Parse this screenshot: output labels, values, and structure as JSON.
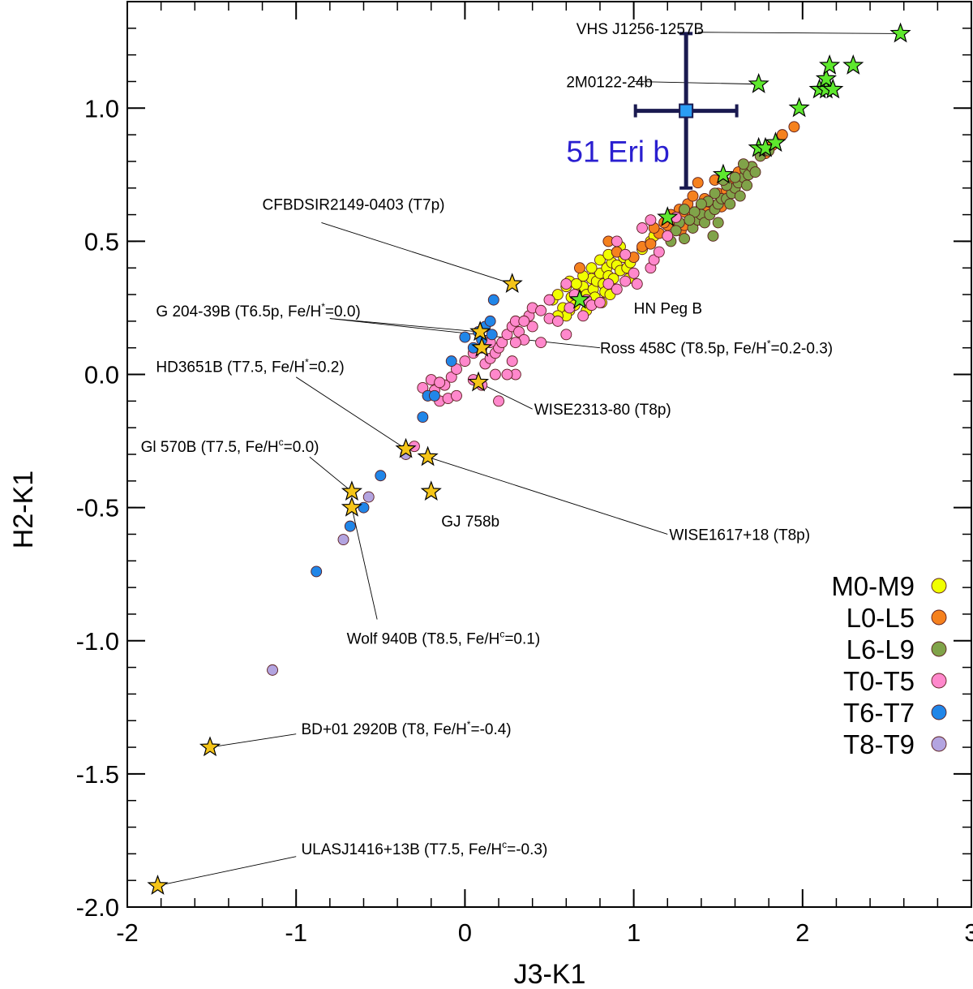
{
  "chart_data": {
    "type": "scatter",
    "title": "",
    "xlabel": "J3-K1",
    "ylabel": "H2-K1",
    "xlim": [
      -2,
      3
    ],
    "ylim": [
      -2.0,
      1.4
    ],
    "xticks": [
      -2,
      -1,
      0,
      1,
      2,
      3
    ],
    "xtick_labels": [
      "-2",
      "-1",
      "0",
      "1",
      "2",
      "3"
    ],
    "yticks": [
      -2.0,
      -1.5,
      -1.0,
      -0.5,
      0.0,
      0.5,
      1.0
    ],
    "ytick_labels": [
      "-2.0",
      "-1.5",
      "-1.0",
      "-0.5",
      "0.0",
      "0.5",
      "1.0"
    ],
    "grid": false,
    "legend_position": "bottom-right",
    "series": [
      {
        "name": "M0-M9",
        "color": "#f0ff00",
        "marker": "circle",
        "points": [
          [
            0.52,
            0.28
          ],
          [
            0.55,
            0.3
          ],
          [
            0.58,
            0.25
          ],
          [
            0.6,
            0.33
          ],
          [
            0.62,
            0.24
          ],
          [
            0.63,
            0.29
          ],
          [
            0.65,
            0.26
          ],
          [
            0.6,
            0.22
          ],
          [
            0.68,
            0.31
          ],
          [
            0.7,
            0.33
          ],
          [
            0.72,
            0.3
          ],
          [
            0.73,
            0.27
          ],
          [
            0.75,
            0.36
          ],
          [
            0.76,
            0.32
          ],
          [
            0.78,
            0.35
          ],
          [
            0.8,
            0.38
          ],
          [
            0.82,
            0.34
          ],
          [
            0.84,
            0.4
          ],
          [
            0.85,
            0.37
          ],
          [
            0.87,
            0.42
          ],
          [
            0.88,
            0.36
          ],
          [
            0.9,
            0.41
          ],
          [
            0.92,
            0.39
          ],
          [
            0.94,
            0.44
          ],
          [
            0.96,
            0.4
          ],
          [
            0.98,
            0.42
          ],
          [
            0.7,
            0.37
          ],
          [
            0.75,
            0.4
          ],
          [
            0.8,
            0.43
          ],
          [
            0.85,
            0.45
          ],
          [
            0.9,
            0.46
          ],
          [
            0.95,
            0.45
          ],
          [
            0.62,
            0.35
          ],
          [
            0.66,
            0.34
          ],
          [
            0.55,
            0.22
          ],
          [
            0.77,
            0.29
          ],
          [
            0.83,
            0.31
          ],
          [
            0.88,
            0.32
          ],
          [
            1.05,
            0.47
          ],
          [
            1.1,
            0.5
          ],
          [
            1.12,
            0.52
          ],
          [
            0.92,
            0.48
          ],
          [
            0.97,
            0.36
          ],
          [
            0.72,
            0.24
          ],
          [
            0.81,
            0.27
          ],
          [
            0.86,
            0.3
          ]
        ]
      },
      {
        "name": "L0-L5",
        "color": "#f5811e",
        "marker": "circle",
        "points": [
          [
            0.68,
            0.4
          ],
          [
            0.85,
            0.5
          ],
          [
            0.9,
            0.46
          ],
          [
            1.0,
            0.44
          ],
          [
            1.05,
            0.48
          ],
          [
            1.15,
            0.53
          ],
          [
            1.2,
            0.56
          ],
          [
            1.25,
            0.58
          ],
          [
            1.27,
            0.62
          ],
          [
            1.3,
            0.61
          ],
          [
            1.32,
            0.64
          ],
          [
            1.35,
            0.6
          ],
          [
            1.4,
            0.63
          ],
          [
            1.42,
            0.66
          ],
          [
            1.45,
            0.64
          ],
          [
            1.5,
            0.68
          ],
          [
            1.55,
            0.69
          ],
          [
            1.58,
            0.72
          ],
          [
            1.6,
            0.7
          ],
          [
            1.35,
            0.67
          ],
          [
            1.28,
            0.54
          ],
          [
            1.22,
            0.6
          ],
          [
            1.18,
            0.57
          ],
          [
            1.38,
            0.72
          ],
          [
            1.48,
            0.73
          ],
          [
            1.62,
            0.76
          ],
          [
            1.7,
            0.78
          ],
          [
            1.78,
            0.83
          ],
          [
            1.82,
            0.86
          ],
          [
            1.88,
            0.9
          ],
          [
            1.95,
            0.93
          ],
          [
            1.1,
            0.49
          ],
          [
            1.12,
            0.55
          ],
          [
            1.3,
            0.56
          ],
          [
            1.43,
            0.61
          ],
          [
            1.52,
            0.63
          ]
        ]
      },
      {
        "name": "L6-L9",
        "color": "#80a349",
        "marker": "circle",
        "points": [
          [
            1.3,
            0.51
          ],
          [
            1.35,
            0.55
          ],
          [
            1.38,
            0.58
          ],
          [
            1.4,
            0.6
          ],
          [
            1.42,
            0.57
          ],
          [
            1.45,
            0.6
          ],
          [
            1.48,
            0.62
          ],
          [
            1.5,
            0.64
          ],
          [
            1.52,
            0.66
          ],
          [
            1.55,
            0.66
          ],
          [
            1.58,
            0.68
          ],
          [
            1.6,
            0.7
          ],
          [
            1.62,
            0.72
          ],
          [
            1.65,
            0.74
          ],
          [
            1.66,
            0.77
          ],
          [
            1.68,
            0.75
          ],
          [
            1.7,
            0.78
          ],
          [
            1.72,
            0.76
          ],
          [
            1.55,
            0.71
          ],
          [
            1.6,
            0.74
          ],
          [
            1.65,
            0.79
          ],
          [
            1.53,
            0.73
          ],
          [
            1.48,
            0.68
          ],
          [
            1.44,
            0.65
          ],
          [
            1.4,
            0.64
          ],
          [
            1.36,
            0.61
          ],
          [
            1.33,
            0.58
          ],
          [
            1.3,
            0.62
          ],
          [
            1.27,
            0.57
          ],
          [
            1.25,
            0.54
          ],
          [
            1.75,
            0.82
          ],
          [
            1.8,
            0.84
          ],
          [
            1.5,
            0.57
          ],
          [
            1.57,
            0.64
          ],
          [
            1.63,
            0.67
          ],
          [
            1.67,
            0.71
          ],
          [
            1.22,
            0.5
          ],
          [
            1.47,
            0.52
          ]
        ]
      },
      {
        "name": "T0-T5",
        "color": "#ff88cc",
        "marker": "circle",
        "points": [
          [
            -0.25,
            -0.05
          ],
          [
            -0.22,
            -0.08
          ],
          [
            -0.2,
            -0.02
          ],
          [
            -0.18,
            -0.06
          ],
          [
            -0.15,
            -0.1
          ],
          [
            -0.12,
            -0.04
          ],
          [
            -0.1,
            -0.09
          ],
          [
            -0.08,
            -0.01
          ],
          [
            -0.05,
            0.02
          ],
          [
            0.0,
            0.05
          ],
          [
            0.05,
            0.08
          ],
          [
            0.1,
            0.1
          ],
          [
            0.12,
            0.04
          ],
          [
            0.15,
            0.06
          ],
          [
            0.18,
            0.08
          ],
          [
            0.2,
            0.1
          ],
          [
            0.22,
            0.12
          ],
          [
            0.25,
            0.15
          ],
          [
            0.28,
            0.18
          ],
          [
            0.3,
            0.2
          ],
          [
            0.32,
            0.16
          ],
          [
            0.35,
            0.13
          ],
          [
            0.38,
            0.22
          ],
          [
            0.4,
            0.25
          ],
          [
            0.45,
            0.24
          ],
          [
            0.5,
            0.21
          ],
          [
            0.55,
            0.2
          ],
          [
            0.6,
            0.15
          ],
          [
            0.62,
            0.25
          ],
          [
            0.65,
            0.3
          ],
          [
            0.7,
            0.22
          ],
          [
            0.72,
            0.28
          ],
          [
            0.75,
            0.26
          ],
          [
            0.8,
            0.27
          ],
          [
            0.85,
            0.34
          ],
          [
            0.9,
            0.32
          ],
          [
            0.95,
            0.35
          ],
          [
            1.0,
            0.38
          ],
          [
            1.02,
            0.34
          ],
          [
            1.1,
            0.4
          ],
          [
            1.12,
            0.43
          ],
          [
            1.15,
            0.46
          ],
          [
            0.95,
            0.45
          ],
          [
            0.9,
            0.5
          ],
          [
            1.05,
            0.55
          ],
          [
            1.1,
            0.58
          ],
          [
            1.2,
            0.52
          ],
          [
            1.25,
            0.59
          ],
          [
            0.6,
            0.34
          ],
          [
            0.3,
            0.12
          ],
          [
            0.2,
            -0.1
          ],
          [
            0.3,
            0.0
          ],
          [
            0.28,
            0.05
          ],
          [
            0.18,
            0.0
          ],
          [
            0.1,
            -0.04
          ],
          [
            0.05,
            -0.02
          ],
          [
            -0.05,
            -0.08
          ],
          [
            -0.3,
            -0.27
          ],
          [
            -0.15,
            -0.03
          ],
          [
            0.4,
            0.18
          ],
          [
            0.45,
            0.12
          ],
          [
            0.5,
            0.28
          ],
          [
            0.35,
            0.2
          ],
          [
            0.25,
            0.0
          ],
          [
            0.15,
            0.12
          ]
        ]
      },
      {
        "name": "T6-T7",
        "color": "#2186e8",
        "marker": "circle",
        "points": [
          [
            -0.88,
            -0.74
          ],
          [
            -0.68,
            -0.57
          ],
          [
            -0.6,
            -0.5
          ],
          [
            -0.5,
            -0.38
          ],
          [
            -0.25,
            -0.16
          ],
          [
            -0.22,
            -0.08
          ],
          [
            -0.18,
            -0.08
          ],
          [
            -0.08,
            0.05
          ],
          [
            0.0,
            0.14
          ],
          [
            0.05,
            0.1
          ],
          [
            0.08,
            0.16
          ],
          [
            0.1,
            0.13
          ],
          [
            0.12,
            0.18
          ],
          [
            0.15,
            0.2
          ],
          [
            0.16,
            0.15
          ],
          [
            0.17,
            0.28
          ]
        ]
      },
      {
        "name": "T8-T9",
        "color": "#b3a4e0",
        "marker": "circle",
        "points": [
          [
            -1.14,
            -1.11
          ],
          [
            -0.72,
            -0.62
          ],
          [
            -0.57,
            -0.46
          ],
          [
            -0.35,
            -0.3
          ]
        ]
      }
    ],
    "stars_yellow": {
      "color": "#f5c518",
      "points": [
        [
          -1.82,
          -1.92
        ],
        [
          -1.51,
          -1.4
        ],
        [
          -0.67,
          -0.44
        ],
        [
          -0.67,
          -0.5
        ],
        [
          -0.35,
          -0.28
        ],
        [
          -0.22,
          -0.31
        ],
        [
          -0.2,
          -0.44
        ],
        [
          0.08,
          -0.03
        ],
        [
          0.1,
          0.1
        ],
        [
          0.09,
          0.16
        ],
        [
          0.28,
          0.34
        ]
      ]
    },
    "stars_green": {
      "color": "#5ee82e",
      "points": [
        [
          0.68,
          0.28
        ],
        [
          1.2,
          0.59
        ],
        [
          1.53,
          0.75
        ],
        [
          1.74,
          0.85
        ],
        [
          1.78,
          0.85
        ],
        [
          1.84,
          0.87
        ],
        [
          1.98,
          1.0
        ],
        [
          2.1,
          1.07
        ],
        [
          2.14,
          1.07
        ],
        [
          2.14,
          1.11
        ],
        [
          2.16,
          1.16
        ],
        [
          2.18,
          1.07
        ],
        [
          2.3,
          1.16
        ],
        [
          1.74,
          1.09
        ],
        [
          2.58,
          1.28
        ]
      ]
    },
    "highlight": {
      "label": "51 Eri b",
      "x": 1.31,
      "y": 0.99,
      "xerr": 0.3,
      "yerr_plus": 0.29,
      "yerr_minus": 0.29,
      "color": "#2a9df4",
      "errcolor": "#1a1a50"
    },
    "annotations": [
      {
        "name": "vhs",
        "label": "VHS J1256-1257B",
        "text_x": 0.66,
        "text_y": 1.3,
        "anchor": "start",
        "line_from": [
          1.38,
          1.285
        ],
        "line_to": [
          2.58,
          1.28
        ]
      },
      {
        "name": "2m0122",
        "label": "2M0122-24b",
        "text_x": 0.6,
        "text_y": 1.1,
        "anchor": "start",
        "line_from": [
          1.0,
          1.1
        ],
        "line_to": [
          1.74,
          1.09
        ]
      },
      {
        "name": "cfbdsir",
        "label": "CFBDSIR2149-0403 (T7p)",
        "text_x": -1.2,
        "text_y": 0.64,
        "anchor": "start",
        "line_from": [
          -0.85,
          0.57
        ],
        "line_to": [
          0.28,
          0.34
        ]
      },
      {
        "name": "hnpeg",
        "label": "HN Peg B",
        "text_x": 1.0,
        "text_y": 0.25,
        "anchor": "start",
        "line_from": null,
        "line_to": null
      },
      {
        "name": "g204",
        "label": "G 204-39B (T6.5p, Fe/H",
        "sup": "*",
        "suffix": "=0.0)",
        "text_x": -1.83,
        "text_y": 0.24,
        "anchor": "start",
        "line_from": [
          -0.8,
          0.21
        ],
        "line_to": [
          0.09,
          0.16
        ]
      },
      {
        "name": "ross458",
        "label": "Ross 458C (T8.5p,  Fe/H",
        "sup": "*",
        "suffix": "=0.2-0.3)",
        "text_x": 0.8,
        "text_y": 0.1,
        "anchor": "start",
        "line_from": [
          -0.8,
          0.21
        ],
        "line_to": [
          0.8,
          0.1
        ]
      },
      {
        "name": "hd3651",
        "label": "HD3651B (T7.5, Fe/H",
        "sup": "*",
        "suffix": "=0.2)",
        "text_x": -1.83,
        "text_y": 0.03,
        "anchor": "start",
        "line_from": [
          -1.0,
          -0.01
        ],
        "line_to": [
          -0.35,
          -0.28
        ]
      },
      {
        "name": "wise2313",
        "label": "WISE2313-80 (T8p)",
        "text_x": 0.41,
        "text_y": -0.13,
        "anchor": "start",
        "line_from": [
          0.08,
          -0.03
        ],
        "line_to": [
          0.4,
          -0.13
        ]
      },
      {
        "name": "gl570",
        "label": "Gl 570B (T7.5, Fe/H",
        "sup": "c",
        "suffix": "=0.0)",
        "text_x": -1.92,
        "text_y": -0.27,
        "anchor": "start",
        "line_from": [
          -0.92,
          -0.31
        ],
        "line_to": [
          -0.67,
          -0.44
        ]
      },
      {
        "name": "gj758",
        "label": "GJ 758b",
        "text_x": -0.14,
        "text_y": -0.55,
        "anchor": "start",
        "line_from": null,
        "line_to": null
      },
      {
        "name": "wise1617",
        "label": "WISE1617+18 (T8p)",
        "text_x": 1.21,
        "text_y": -0.6,
        "anchor": "start",
        "line_from": [
          -0.22,
          -0.31
        ],
        "line_to": [
          1.2,
          -0.6
        ]
      },
      {
        "name": "wolf940",
        "label": "Wolf 940B (T8.5, Fe/H",
        "sup": "c",
        "suffix": "=0.1)",
        "text_x": -0.7,
        "text_y": -0.99,
        "anchor": "start",
        "line_from": [
          -0.67,
          -0.5
        ],
        "line_to": [
          -0.52,
          -0.92
        ]
      },
      {
        "name": "bd01",
        "label": "BD+01 2920B (T8, Fe/H",
        "sup": "*",
        "suffix": "=-0.4)",
        "text_x": -0.97,
        "text_y": -1.33,
        "anchor": "start",
        "line_from": [
          -1.51,
          -1.4
        ],
        "line_to": [
          -1.0,
          -1.35
        ]
      },
      {
        "name": "ulas1416",
        "label": "ULASJ1416+13B (T7.5, Fe/H",
        "sup": "c",
        "suffix": "=-0.3)",
        "text_x": -0.97,
        "text_y": -1.78,
        "anchor": "start",
        "line_from": [
          -1.82,
          -1.92
        ],
        "line_to": [
          -1.0,
          -1.81
        ]
      }
    ]
  }
}
